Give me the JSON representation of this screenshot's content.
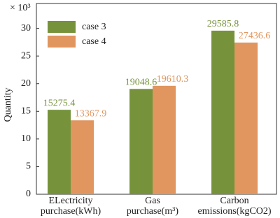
{
  "chart_data": {
    "type": "bar",
    "y_label": "Quantity",
    "y_scale_label": "× 10³",
    "categories": [
      [
        "ELectricity",
        "purchase(kWh)"
      ],
      [
        "Gas",
        "purchase(m³)"
      ],
      [
        "Carbon",
        "emissions(kgCO2)"
      ]
    ],
    "series": [
      {
        "name": "case 3",
        "color": "#76933c",
        "values": [
          15275.4,
          19048.6,
          29585.8
        ]
      },
      {
        "name": "case 4",
        "color": "#e0965e",
        "values": [
          13367.9,
          19610.3,
          27436.6
        ]
      }
    ],
    "ylim": [
      0,
      34500
    ],
    "yticks": [
      {
        "value": 0,
        "label": "0"
      },
      {
        "value": 5000,
        "label": "5"
      },
      {
        "value": 10000,
        "label": "10"
      },
      {
        "value": 15000,
        "label": "15"
      },
      {
        "value": 20000,
        "label": "20"
      },
      {
        "value": 25000,
        "label": "25"
      },
      {
        "value": 30000,
        "label": "30"
      }
    ],
    "legend": "upper left"
  }
}
